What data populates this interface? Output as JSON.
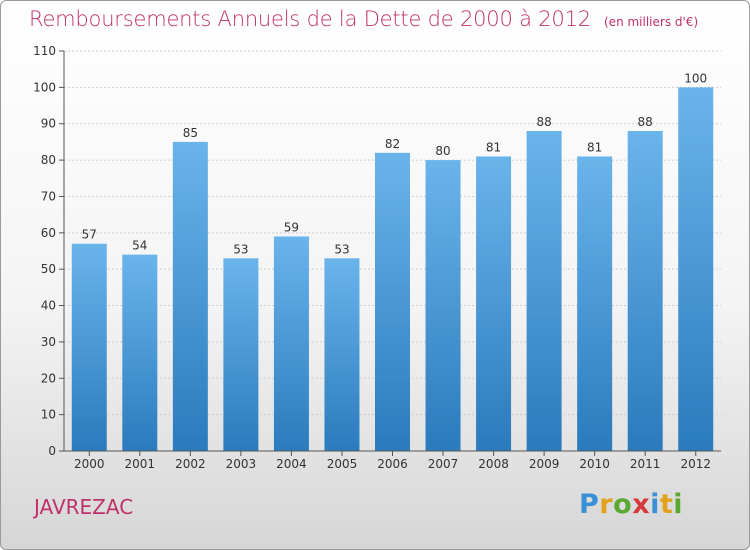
{
  "title": "Remboursements Annuels de la Dette de 2000 à 2012",
  "unit": "(en milliers d'€)",
  "city": "JAVREZAC",
  "logo": {
    "letters": [
      "P",
      "r",
      "o",
      "x",
      "i",
      "t",
      "i"
    ],
    "colors": [
      "#3a8fd6",
      "#e2a21b",
      "#5aa832",
      "#d43a3a",
      "#3a8fd6",
      "#e2a21b",
      "#5aa832"
    ]
  },
  "colors": {
    "bar_light": "#6ab4ec",
    "bar_dark": "#2a7bbd",
    "title": "#c0306a"
  },
  "chart_data": {
    "type": "bar",
    "title": "Remboursements Annuels de la Dette de 2000 à 2012",
    "categories": [
      "2000",
      "2001",
      "2002",
      "2003",
      "2004",
      "2005",
      "2006",
      "2007",
      "2008",
      "2009",
      "2010",
      "2011",
      "2012"
    ],
    "values": [
      57,
      54,
      85,
      53,
      59,
      53,
      82,
      80,
      81,
      88,
      81,
      88,
      100
    ],
    "ylim": [
      0,
      110
    ],
    "yticks": [
      0,
      10,
      20,
      30,
      40,
      50,
      60,
      70,
      80,
      90,
      100,
      110
    ],
    "grid": true
  }
}
